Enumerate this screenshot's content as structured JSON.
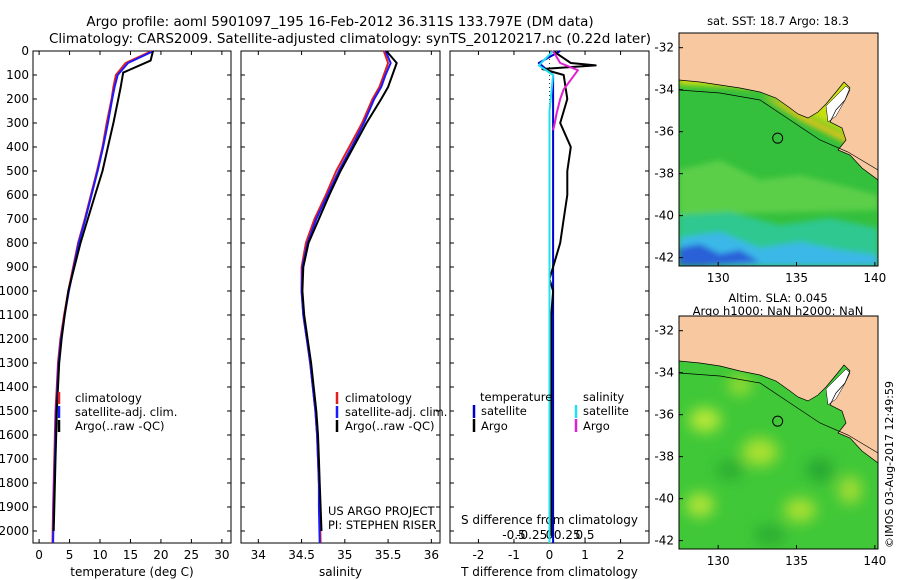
{
  "header": {
    "title_line1": "Argo profile: aoml 5901097_195 16-Feb-2012 36.311S 133.797E (DM data)",
    "title_line2": "Climatology: CARS2009. Satellite-adjusted climatology: synTS_20120217.nc (0.22d later)"
  },
  "legend": {
    "climatology": "climatology",
    "satellite_adj": "satellite-adj. clim.",
    "argo": "Argo(..raw -QC)",
    "temperature": "temperature",
    "salinity": "salinity",
    "satellite": "satellite",
    "argo_short": "Argo"
  },
  "credits": {
    "project": "US ARGO PROJECT",
    "pi": "PI: STEPHEN RISER"
  },
  "stamp": "©IMOS 03-Aug-2017 12:49:59",
  "colors": {
    "climatology": "#e02020",
    "satellite_adj": "#1a1aff",
    "argo": "#000000",
    "t_satellite": "#0000cc",
    "s_satellite": "#22e0f0",
    "s_argo": "#e020d0",
    "land": "#f8c8a0"
  },
  "chart_data": [
    {
      "type": "line",
      "id": "temperature",
      "xlabel": "temperature (deg C)",
      "ylabel": "",
      "xlim": [
        -1,
        31.5
      ],
      "ylim": [
        2050,
        0
      ],
      "xticks": [
        0,
        5,
        10,
        15,
        20,
        25,
        30
      ],
      "yticks": [
        0,
        100,
        200,
        300,
        400,
        500,
        600,
        700,
        800,
        900,
        1000,
        1100,
        1200,
        1300,
        1400,
        1500,
        1600,
        1700,
        1800,
        1900,
        2000
      ],
      "series": [
        {
          "name": "climatology",
          "color": "#e02020",
          "x": [
            18.5,
            14.2,
            12.6,
            12.2,
            11.9,
            11.1,
            10.4,
            9.5,
            8.5,
            7.5,
            6.4,
            5.6,
            4.8,
            4.1,
            3.5,
            3.1,
            2.9,
            2.7,
            2.6,
            2.5,
            2.4,
            2.3,
            2.2
          ],
          "y": [
            0,
            50,
            100,
            150,
            200,
            300,
            400,
            500,
            600,
            700,
            800,
            900,
            1000,
            1100,
            1200,
            1300,
            1400,
            1500,
            1600,
            1700,
            1800,
            1900,
            2050
          ]
        },
        {
          "name": "satellite-adj. clim.",
          "color": "#1a1aff",
          "x": [
            18.8,
            14.6,
            12.9,
            12.4,
            12.0,
            11.3,
            10.5,
            9.6,
            8.6,
            7.6,
            6.5,
            5.7,
            4.9,
            4.2,
            3.6,
            3.2,
            3.0,
            2.8,
            2.7,
            2.6,
            2.5,
            2.4,
            2.3
          ],
          "y": [
            0,
            50,
            100,
            150,
            200,
            300,
            400,
            500,
            600,
            700,
            800,
            900,
            1000,
            1100,
            1200,
            1300,
            1400,
            1500,
            1600,
            1700,
            1800,
            1900,
            2050
          ]
        },
        {
          "name": "Argo(..raw -QC)",
          "color": "#000000",
          "x": [
            18.7,
            18.3,
            13.8,
            13.4,
            13.0,
            12.2,
            11.3,
            10.4,
            9.2,
            8.0,
            6.8,
            5.8,
            4.8,
            4.2,
            3.7,
            3.3,
            3.1,
            2.9,
            2.8,
            2.7,
            2.6,
            2.5,
            2.4
          ],
          "y": [
            0,
            40,
            90,
            150,
            200,
            300,
            400,
            500,
            600,
            700,
            800,
            900,
            1000,
            1100,
            1200,
            1300,
            1400,
            1500,
            1600,
            1700,
            1800,
            1900,
            2000
          ]
        }
      ]
    },
    {
      "type": "line",
      "id": "salinity",
      "xlabel": "salinity",
      "ylabel": "",
      "xlim": [
        33.8,
        36.1
      ],
      "ylim": [
        2050,
        0
      ],
      "xticks": [
        34,
        34.5,
        35,
        35.5,
        36
      ],
      "series": [
        {
          "name": "climatology",
          "color": "#e02020",
          "x": [
            35.45,
            35.5,
            35.45,
            35.4,
            35.32,
            35.2,
            35.05,
            34.9,
            34.78,
            34.65,
            34.55,
            34.5,
            34.5,
            34.52,
            34.56,
            34.6,
            34.63,
            34.66,
            34.68,
            34.69,
            34.7,
            34.71,
            34.72
          ],
          "y": [
            0,
            50,
            100,
            150,
            200,
            300,
            400,
            500,
            600,
            700,
            800,
            900,
            1000,
            1100,
            1200,
            1300,
            1400,
            1500,
            1600,
            1700,
            1800,
            1900,
            2050
          ]
        },
        {
          "name": "satellite-adj. clim.",
          "color": "#1a1aff",
          "x": [
            35.47,
            35.53,
            35.47,
            35.42,
            35.34,
            35.22,
            35.08,
            34.93,
            34.8,
            34.67,
            34.57,
            34.51,
            34.5,
            34.52,
            34.56,
            34.6,
            34.63,
            34.66,
            34.68,
            34.69,
            34.7,
            34.7,
            34.71
          ],
          "y": [
            0,
            50,
            100,
            150,
            200,
            300,
            400,
            500,
            600,
            700,
            800,
            900,
            1000,
            1100,
            1200,
            1300,
            1400,
            1500,
            1600,
            1700,
            1800,
            1900,
            2050
          ]
        },
        {
          "name": "Argo(..raw -QC)",
          "color": "#000000",
          "x": [
            35.48,
            35.6,
            35.55,
            35.5,
            35.42,
            35.25,
            35.1,
            34.95,
            34.82,
            34.7,
            34.58,
            34.52,
            34.51,
            34.53,
            34.57,
            34.61,
            34.64,
            34.67,
            34.69,
            34.7,
            34.71,
            34.72,
            34.73
          ],
          "y": [
            0,
            50,
            100,
            150,
            200,
            300,
            400,
            500,
            600,
            700,
            800,
            900,
            1000,
            1100,
            1200,
            1300,
            1400,
            1500,
            1600,
            1700,
            1800,
            1900,
            2000
          ]
        }
      ]
    },
    {
      "type": "line",
      "id": "difference",
      "xlabel": "T difference from climatology",
      "x2label": "S difference from climatology",
      "xlim": [
        -2.8,
        2.8
      ],
      "ylim": [
        2050,
        0
      ],
      "xticks": [
        -2,
        -1,
        0,
        1,
        2
      ],
      "x2ticks": [
        -0.5,
        -0.25,
        0,
        0.25,
        0.5
      ],
      "x2tick_labels": [
        "-0.5",
        "-0.25",
        "0",
        "0.25",
        "0.5"
      ],
      "series": [
        {
          "name": "temperature satellite",
          "color": "#0000cc",
          "x": [
            0.3,
            -0.3,
            0.1,
            0.1,
            0.1,
            0.1,
            0.1,
            0.1,
            0.1,
            0.1,
            0.1,
            0.1,
            0.1,
            0.1,
            0.1,
            0.1,
            0.1,
            0.1,
            0.1,
            0.1,
            0.1,
            0.1
          ],
          "y": [
            0,
            50,
            100,
            200,
            300,
            400,
            500,
            600,
            700,
            800,
            900,
            1000,
            1100,
            1200,
            1300,
            1400,
            1500,
            1600,
            1700,
            1800,
            1900,
            2050
          ]
        },
        {
          "name": "temperature Argo",
          "color": "#000000",
          "x": [
            0.1,
            0.4,
            0.6,
            1.3,
            -0.2,
            0.4,
            0.5,
            0.3,
            0.6,
            0.5,
            0.5,
            0.4,
            0.3,
            0.1,
            0.0,
            0.1,
            0.05,
            0.05,
            0.05,
            0.05,
            0.05,
            0.05,
            0.05,
            0.05,
            0.05,
            0.05,
            0.05,
            0.05
          ],
          "y": [
            0,
            30,
            50,
            60,
            75,
            100,
            200,
            300,
            400,
            500,
            600,
            700,
            800,
            900,
            950,
            1000,
            1100,
            1200,
            1300,
            1400,
            1500,
            1600,
            1700,
            1800,
            1900,
            1950,
            2000,
            2020
          ]
        },
        {
          "name": "salinity satellite",
          "color": "#22e0f0",
          "x": [
            0.1,
            -0.3,
            0.1,
            0.0,
            0.0,
            0.0,
            0.0,
            0.0,
            0.0,
            0.0,
            0.0,
            0.0,
            0.0,
            0.0,
            0.0,
            0.0,
            0.0,
            0.0,
            0.0,
            0.0,
            0.0,
            0.0
          ],
          "y": [
            0,
            60,
            100,
            250,
            300,
            400,
            500,
            600,
            700,
            800,
            900,
            1000,
            1100,
            1200,
            1300,
            1400,
            1500,
            1600,
            1700,
            1800,
            1900,
            2050
          ]
        },
        {
          "name": "salinity Argo",
          "color": "#e020d0",
          "x": [
            0.1,
            0.3,
            0.8,
            0.6,
            0.4,
            0.3,
            0.2,
            0.15,
            0.1
          ],
          "y": [
            0,
            50,
            80,
            120,
            160,
            200,
            260,
            300,
            330
          ]
        }
      ]
    },
    {
      "type": "heatmap",
      "id": "sst_map",
      "title": "sat. SST: 18.7 Argo: 18.3",
      "xlim": [
        127.5,
        140.2
      ],
      "ylim": [
        -42.4,
        -31.3
      ],
      "xticks": [
        130,
        135,
        140
      ],
      "yticks": [
        -32,
        -34,
        -36,
        -38,
        -40,
        -42
      ],
      "marker": {
        "lon": 133.797,
        "lat": -36.311
      }
    },
    {
      "type": "heatmap",
      "id": "sla_map",
      "title_line1": "Altim. SLA: 0.045",
      "title_line2": "Argo h1000: NaN h2000: NaN",
      "xlim": [
        127.5,
        140.2
      ],
      "ylim": [
        -42.4,
        -31.3
      ],
      "xticks": [
        130,
        135,
        140
      ],
      "yticks": [
        -32,
        -34,
        -36,
        -38,
        -40,
        -42
      ],
      "marker": {
        "lon": 133.797,
        "lat": -36.311
      }
    }
  ]
}
